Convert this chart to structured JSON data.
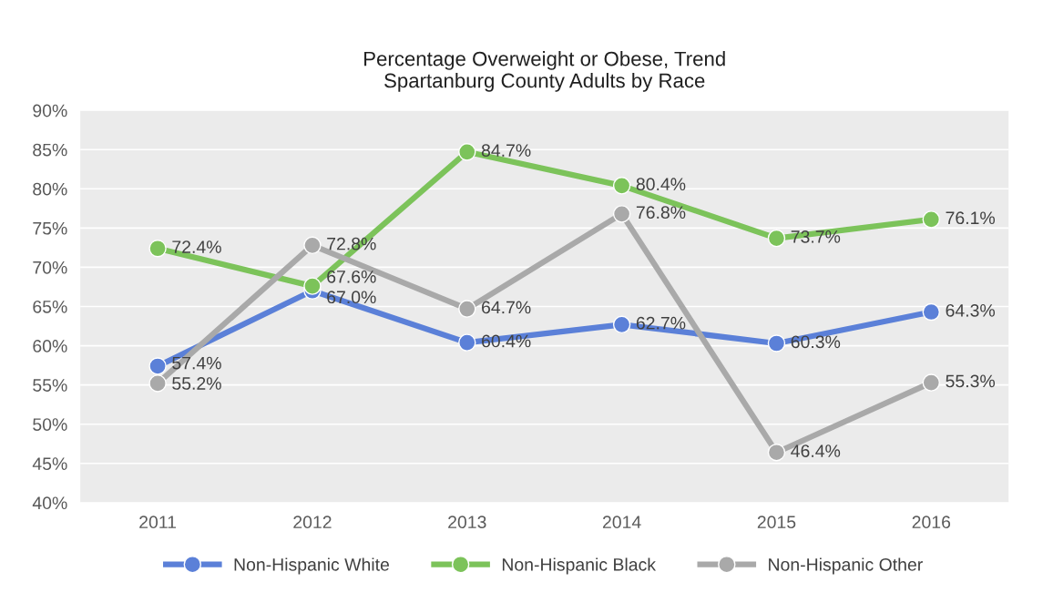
{
  "chart_data": {
    "type": "line",
    "title": "Percentage Overweight or Obese, Trend\nSpartanburg County Adults by Race",
    "categories": [
      "2011",
      "2012",
      "2013",
      "2014",
      "2015",
      "2016"
    ],
    "series": [
      {
        "name": "Non-Hispanic White",
        "color": "#5b80d8",
        "values": [
          57.4,
          67.0,
          60.4,
          62.7,
          60.3,
          64.3
        ],
        "value_labels": [
          "57.4%",
          "67.0%",
          "60.4%",
          "62.7%",
          "60.3%",
          "64.3%"
        ]
      },
      {
        "name": "Non-Hispanic Black",
        "color": "#7cc35a",
        "values": [
          72.4,
          67.6,
          84.7,
          80.4,
          73.7,
          76.1
        ],
        "value_labels": [
          "72.4%",
          "67.6%",
          "84.7%",
          "80.4%",
          "73.7%",
          "76.1%"
        ]
      },
      {
        "name": "Non-Hispanic Other",
        "color": "#a9a9a9",
        "values": [
          55.2,
          72.8,
          64.7,
          76.8,
          46.4,
          55.3
        ],
        "value_labels": [
          "55.2%",
          "72.8%",
          "64.7%",
          "76.8%",
          "46.4%",
          "55.3%"
        ]
      }
    ],
    "ylim": [
      40,
      90
    ],
    "yticks": [
      {
        "value": 40,
        "label": "40%"
      },
      {
        "value": 45,
        "label": "45%"
      },
      {
        "value": 50,
        "label": "50%"
      },
      {
        "value": 55,
        "label": "55%"
      },
      {
        "value": 60,
        "label": "60%"
      },
      {
        "value": 65,
        "label": "65%"
      },
      {
        "value": 70,
        "label": "70%"
      },
      {
        "value": 75,
        "label": "75%"
      },
      {
        "value": 80,
        "label": "80%"
      },
      {
        "value": 85,
        "label": "85%"
      },
      {
        "value": 90,
        "label": "90%"
      }
    ],
    "grid": "y",
    "legend": "bottom",
    "marker": "circle"
  }
}
